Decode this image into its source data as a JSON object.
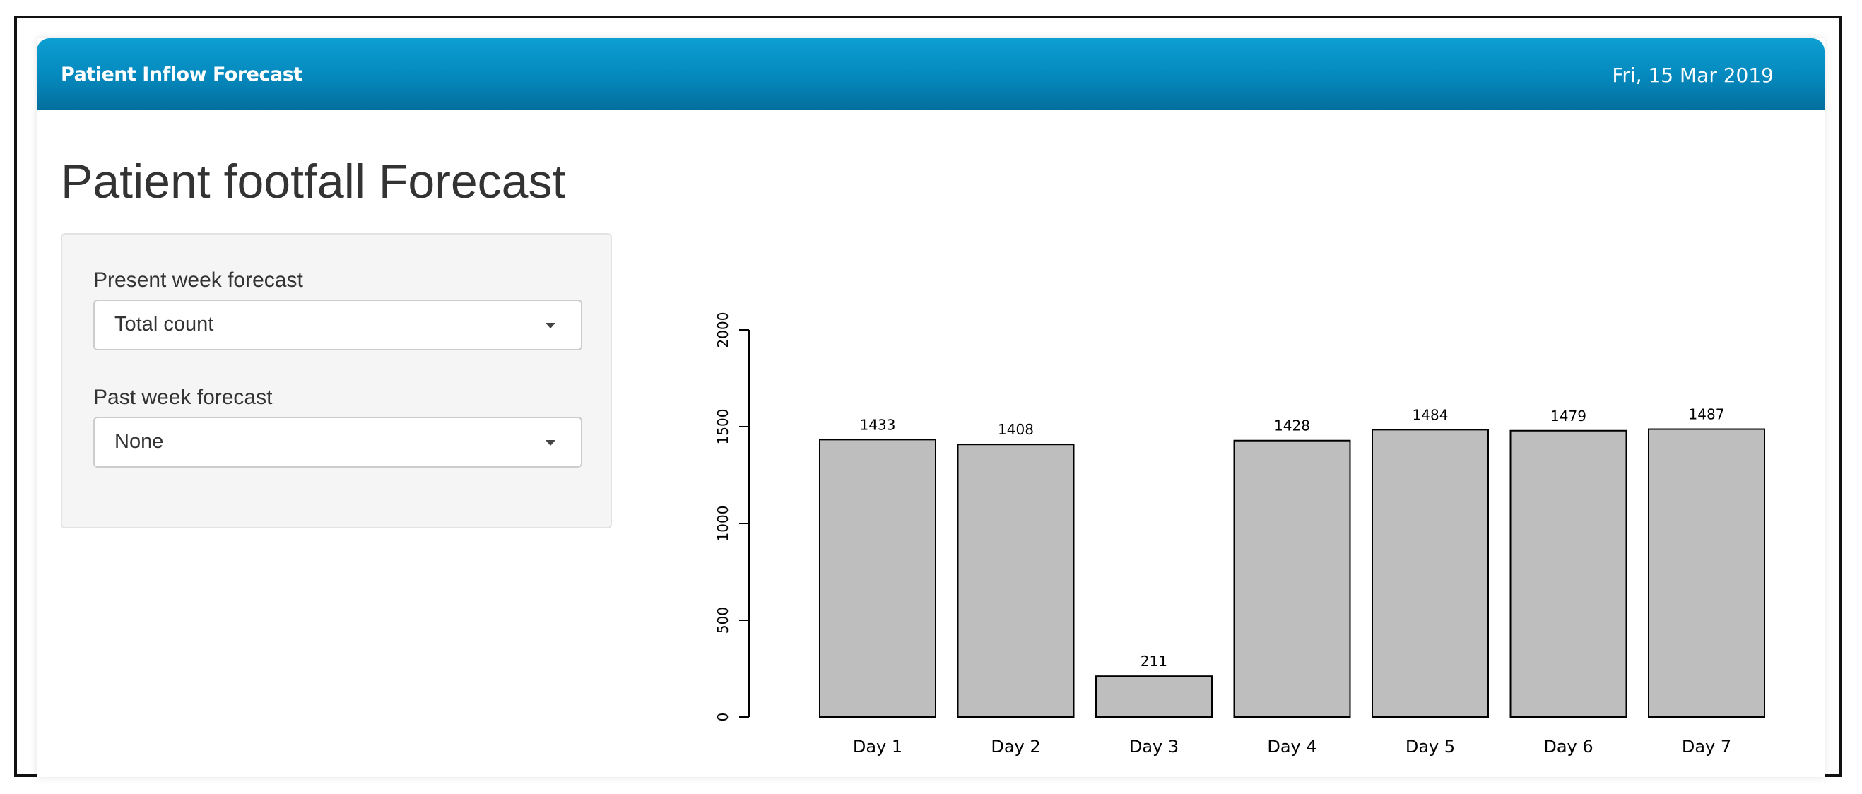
{
  "header": {
    "title": "Patient Inflow Forecast",
    "date": "Fri, 15 Mar 2019"
  },
  "page_title": "Patient footfall Forecast",
  "sidebar": {
    "present_week": {
      "label": "Present week forecast",
      "selected": "Total count"
    },
    "past_week": {
      "label": "Past week forecast",
      "selected": "None"
    }
  },
  "colors": {
    "header_accent": "#0589be",
    "bar_fill": "#bebebe",
    "bar_stroke": "#000000"
  },
  "chart_data": {
    "type": "bar",
    "categories": [
      "Day 1",
      "Day 2",
      "Day 3",
      "Day 4",
      "Day 5",
      "Day 6",
      "Day 7"
    ],
    "values": [
      1433,
      1408,
      211,
      1428,
      1484,
      1479,
      1487
    ],
    "data_labels": [
      "1433",
      "1408",
      "211",
      "1428",
      "1484",
      "1479",
      "1487"
    ],
    "ylim": [
      0,
      2000
    ],
    "yticks": [
      0,
      500,
      1000,
      1500,
      2000
    ],
    "ytick_labels": [
      "0",
      "500",
      "1000",
      "1500",
      "2000"
    ],
    "title": "",
    "xlabel": "",
    "ylabel": "",
    "grid": false
  }
}
